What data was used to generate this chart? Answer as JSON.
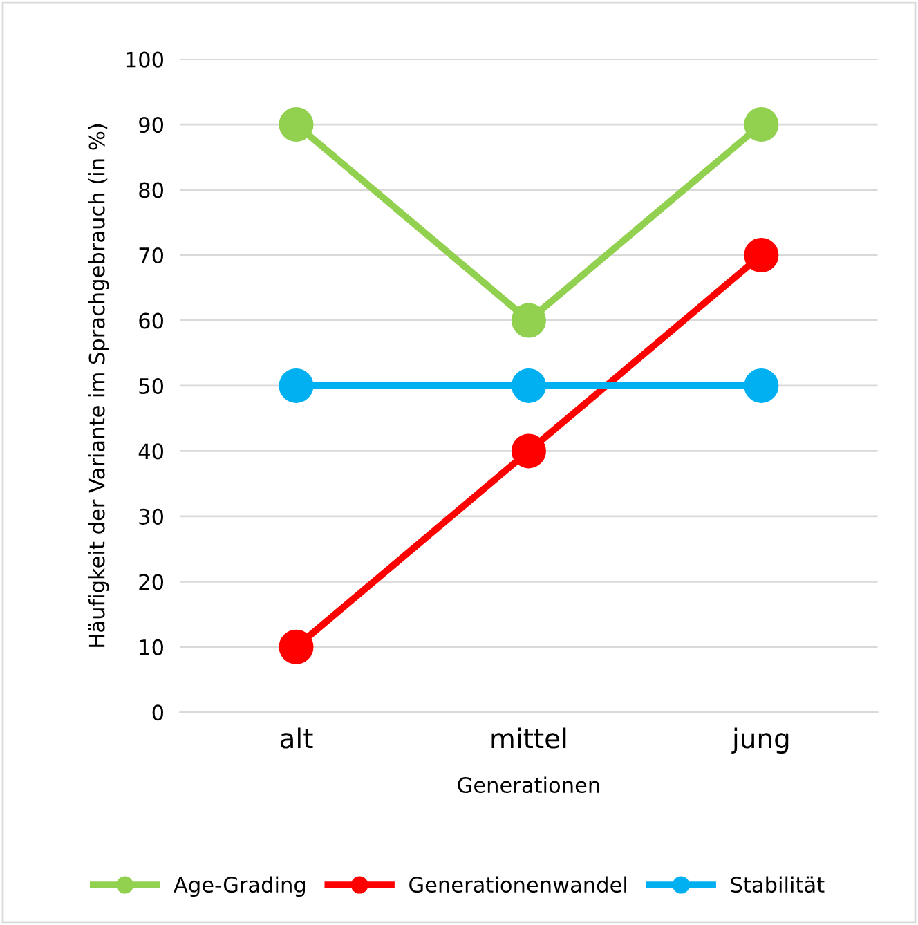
{
  "chart_data": {
    "type": "line",
    "xlabel": "Generationen",
    "ylabel": "Häufigkeit der Variante im Sprachgebrauch (in %)",
    "categories": [
      "alt",
      "mittel",
      "jung"
    ],
    "series": [
      {
        "name": "Age-Grading",
        "color": "#92d050",
        "values": [
          90,
          60,
          90
        ]
      },
      {
        "name": "Generationenwandel",
        "color": "#ff0000",
        "values": [
          10,
          40,
          70
        ]
      },
      {
        "name": "Stabilität",
        "color": "#00b0f0",
        "values": [
          50,
          50,
          50
        ]
      }
    ],
    "ylim": [
      0,
      100
    ],
    "yticks": [
      0,
      10,
      20,
      30,
      40,
      50,
      60,
      70,
      80,
      90,
      100
    ],
    "grid": "y",
    "legend": "bottom",
    "marker": "circle",
    "line_style": "solid"
  }
}
